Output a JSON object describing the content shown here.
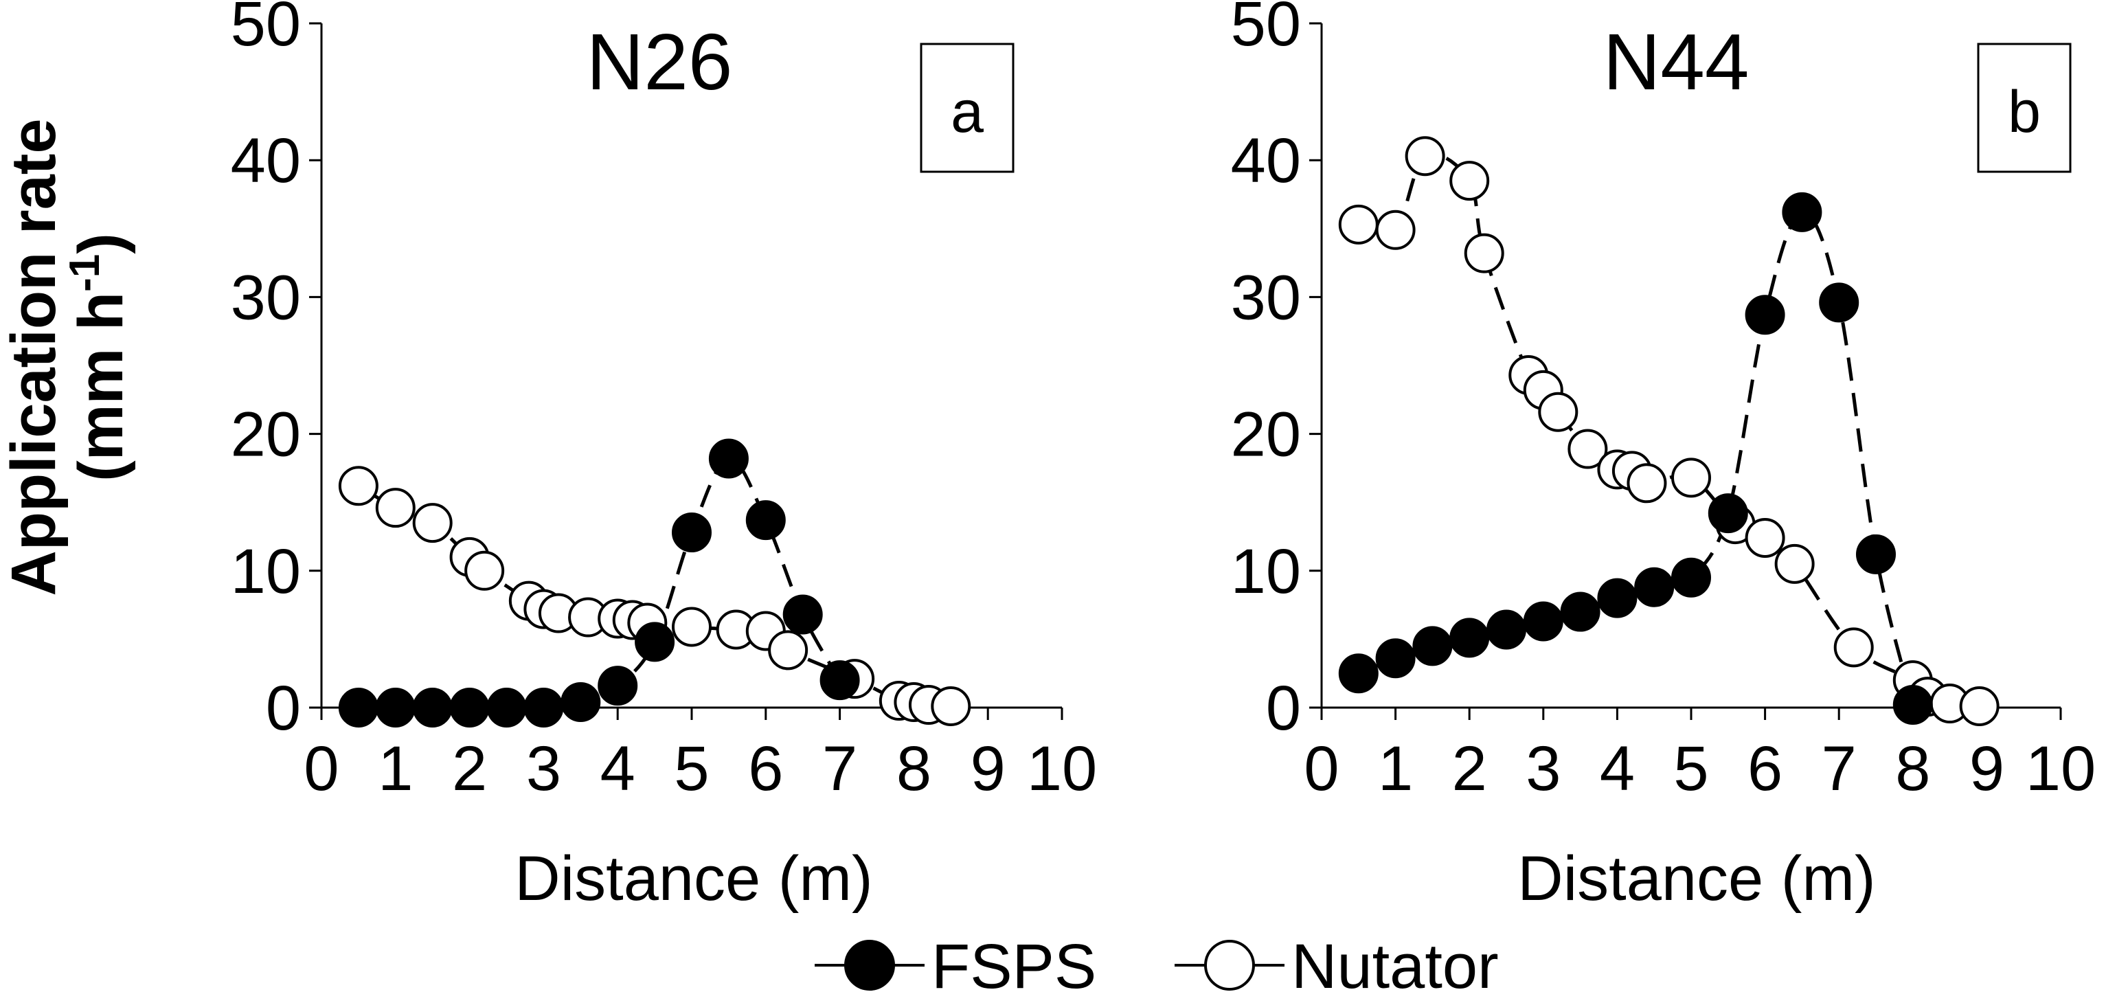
{
  "chart_data": [
    {
      "type": "line",
      "title": "N26",
      "panel_label": "a",
      "xlabel": "Distance (m)",
      "ylabel": "Application rate",
      "ylabel_units": {
        "base": "(mm h",
        "sup": "-1",
        "close": ")"
      },
      "xlim": [
        0,
        10
      ],
      "ylim": [
        0,
        50
      ],
      "xticks": [
        "0",
        "1",
        "2",
        "3",
        "4",
        "5",
        "6",
        "7",
        "8",
        "9",
        "10"
      ],
      "yticks": [
        "0",
        "10",
        "20",
        "30",
        "40",
        "50"
      ],
      "grid": false,
      "series": [
        {
          "name": "FSPS",
          "marker": "filled-circle",
          "x": [
            0.5,
            1.0,
            1.5,
            2.0,
            2.5,
            3.0,
            3.5,
            4.0,
            4.5,
            5.0,
            5.5,
            6.0,
            6.5,
            7.0
          ],
          "y": [
            0.0,
            0.0,
            0.0,
            0.0,
            0.0,
            0.0,
            0.4,
            1.6,
            4.8,
            12.8,
            18.2,
            13.7,
            6.8,
            2.0
          ]
        },
        {
          "name": "Nutator",
          "marker": "open-circle",
          "x": [
            0.5,
            1.0,
            1.5,
            2.0,
            2.2,
            2.8,
            3.0,
            3.2,
            3.6,
            4.0,
            4.2,
            4.4,
            5.0,
            5.6,
            6.0,
            6.3,
            7.2,
            7.8,
            8.0,
            8.2,
            8.5
          ],
          "y": [
            16.2,
            14.6,
            13.5,
            11.0,
            10.0,
            7.8,
            7.2,
            6.9,
            6.6,
            6.5,
            6.4,
            6.2,
            5.9,
            5.7,
            5.6,
            4.2,
            2.1,
            0.5,
            0.4,
            0.2,
            0.1
          ]
        }
      ]
    },
    {
      "type": "line",
      "title": "N44",
      "panel_label": "b",
      "xlabel": "Distance (m)",
      "xlim": [
        0,
        10
      ],
      "ylim": [
        0,
        50
      ],
      "xticks": [
        "0",
        "1",
        "2",
        "3",
        "4",
        "5",
        "6",
        "7",
        "8",
        "9",
        "10"
      ],
      "yticks": [
        "0",
        "10",
        "20",
        "30",
        "40",
        "50"
      ],
      "grid": false,
      "series": [
        {
          "name": "FSPS",
          "marker": "filled-circle",
          "x": [
            0.5,
            1.0,
            1.5,
            2.0,
            2.5,
            3.0,
            3.5,
            4.0,
            4.5,
            5.0,
            5.5,
            6.0,
            6.5,
            7.0,
            7.5,
            8.0
          ],
          "y": [
            2.5,
            3.6,
            4.5,
            5.1,
            5.7,
            6.3,
            7.0,
            8.0,
            8.8,
            9.5,
            14.2,
            28.7,
            36.2,
            29.6,
            11.2,
            0.2
          ]
        },
        {
          "name": "Nutator",
          "marker": "open-circle",
          "x": [
            0.5,
            1.0,
            1.4,
            2.0,
            2.2,
            2.8,
            3.0,
            3.2,
            3.6,
            4.0,
            4.2,
            4.4,
            5.0,
            5.6,
            6.0,
            6.4,
            7.2,
            8.0,
            8.2,
            8.5,
            8.9
          ],
          "y": [
            35.3,
            34.9,
            40.3,
            38.5,
            33.2,
            24.3,
            23.2,
            21.6,
            18.9,
            17.4,
            17.3,
            16.4,
            16.8,
            13.4,
            12.4,
            10.5,
            4.4,
            2.0,
            0.8,
            0.3,
            0.1
          ]
        }
      ]
    }
  ],
  "legend": {
    "placement": "bottom-center",
    "entries": [
      {
        "name": "FSPS",
        "marker": "filled-circle"
      },
      {
        "name": "Nutator",
        "marker": "open-circle"
      }
    ]
  }
}
